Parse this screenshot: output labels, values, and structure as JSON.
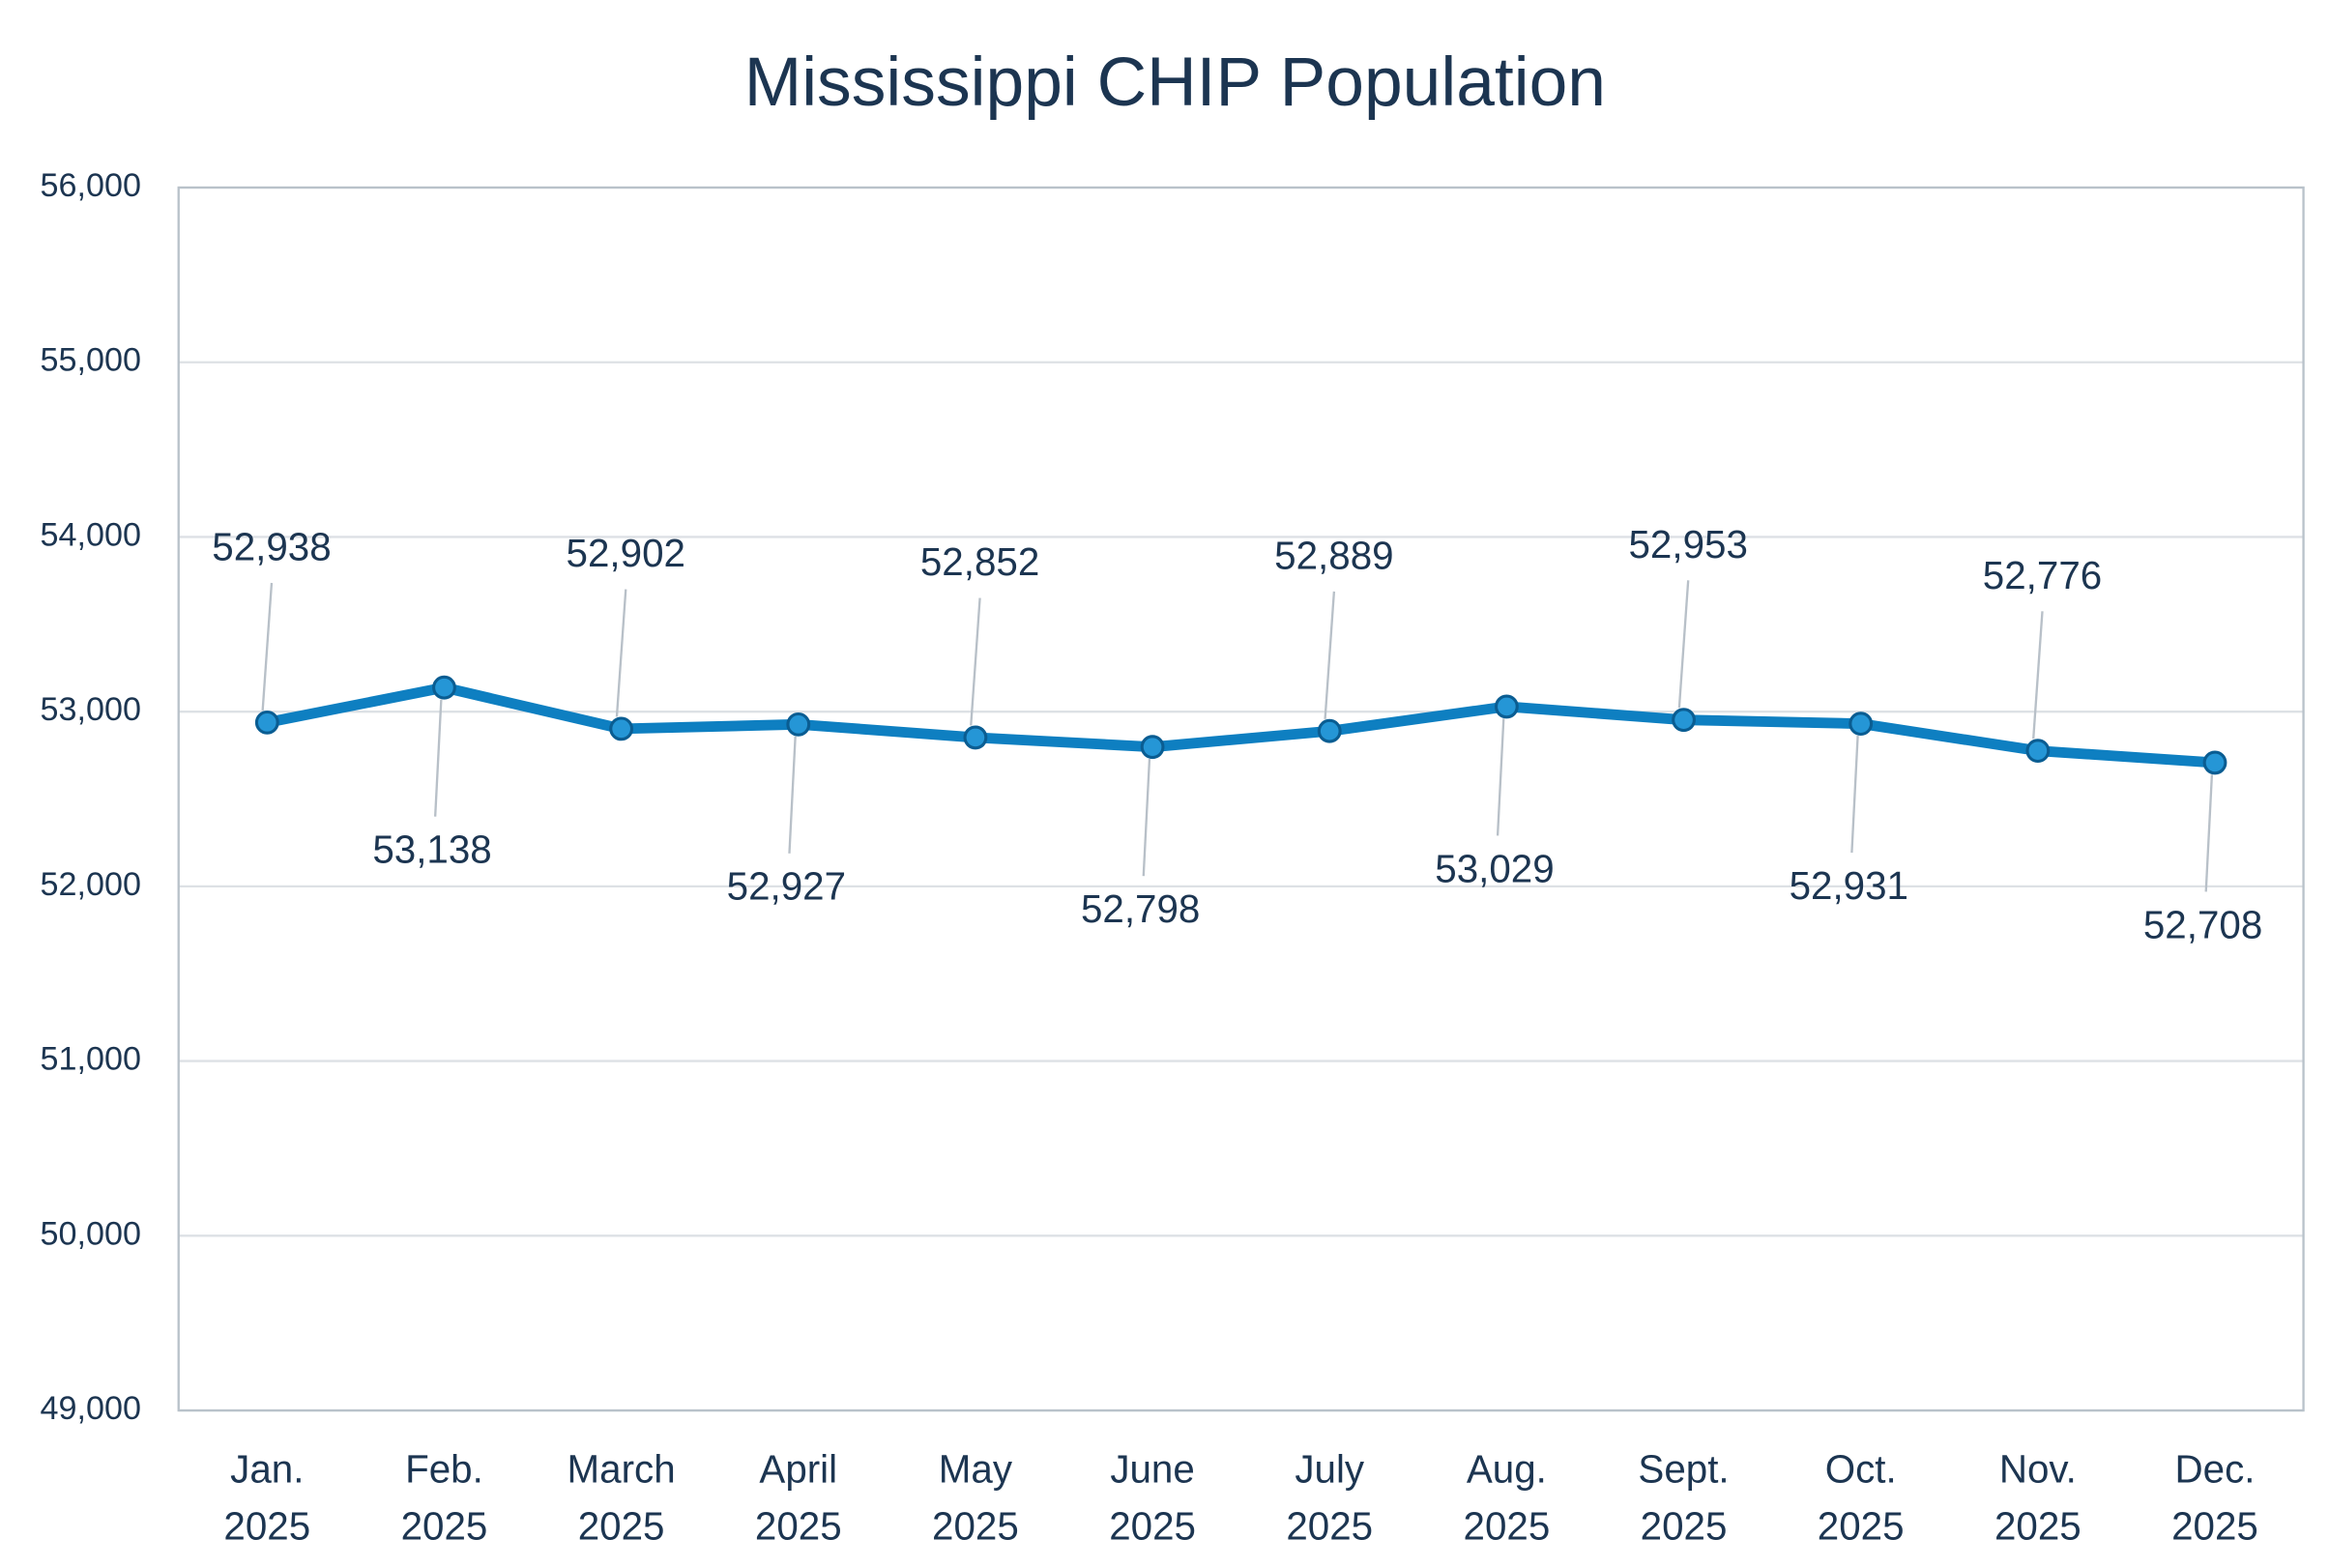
{
  "chart_data": {
    "type": "line",
    "title": "Mississippi CHIP Population",
    "categories": [
      "Jan. 2025",
      "Feb. 2025",
      "March 2025",
      "April 2025",
      "May 2025",
      "June 2025",
      "July 2025",
      "Aug. 2025",
      "Sept. 2025",
      "Oct. 2025",
      "Nov. 2025",
      "Dec. 2025"
    ],
    "series": [
      {
        "name": "Mississippi CHIP Population",
        "color": "#0e7fc1",
        "values": [
          52938,
          53138,
          52902,
          52927,
          52852,
          52798,
          52889,
          53029,
          52953,
          52931,
          52776,
          52708
        ],
        "value_labels": [
          "52,938",
          "53,138",
          "52,902",
          "52,927",
          "52,852",
          "52,798",
          "52,889",
          "53,029",
          "52,953",
          "52,931",
          "52,776",
          "52,708"
        ]
      }
    ],
    "ylim": [
      49000,
      56000
    ],
    "yticks": [
      {
        "value": 49000,
        "label": "49,000"
      },
      {
        "value": 50000,
        "label": "50,000"
      },
      {
        "value": 51000,
        "label": "51,000"
      },
      {
        "value": 52000,
        "label": "52,000"
      },
      {
        "value": 53000,
        "label": "53,000"
      },
      {
        "value": 54000,
        "label": "54,000"
      },
      {
        "value": 55000,
        "label": "55,000"
      },
      {
        "value": 56000,
        "label": "56,000"
      }
    ],
    "grid": true
  }
}
